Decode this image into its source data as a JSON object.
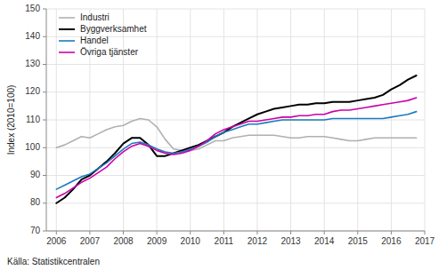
{
  "chart_data": {
    "type": "line",
    "ylabel": "Index (2010=100)",
    "source": "Källa: Statistikcentralen",
    "xlim": [
      2005.7,
      2017.0
    ],
    "xticks": [
      2006,
      2007,
      2008,
      2009,
      2010,
      2011,
      2012,
      2013,
      2014,
      2015,
      2016,
      2017
    ],
    "ylim": [
      70,
      150
    ],
    "yticks": [
      70,
      80,
      90,
      100,
      110,
      120,
      130,
      140,
      150
    ],
    "grid": true,
    "legend": "upper left",
    "x": [
      2006.0,
      2006.25,
      2006.5,
      2006.75,
      2007.0,
      2007.25,
      2007.5,
      2007.75,
      2008.0,
      2008.25,
      2008.5,
      2008.75,
      2009.0,
      2009.25,
      2009.5,
      2009.75,
      2010.0,
      2010.25,
      2010.5,
      2010.75,
      2011.0,
      2011.25,
      2011.5,
      2011.75,
      2012.0,
      2012.25,
      2012.5,
      2012.75,
      2013.0,
      2013.25,
      2013.5,
      2013.75,
      2014.0,
      2014.25,
      2014.5,
      2014.75,
      2015.0,
      2015.25,
      2015.5,
      2015.75,
      2016.0,
      2016.25,
      2016.5,
      2016.75
    ],
    "series": [
      {
        "name": "Industri",
        "color": "#b0b0b0",
        "values": [
          100.0,
          101.0,
          102.5,
          104.0,
          103.5,
          105.0,
          106.5,
          107.5,
          108.0,
          109.5,
          110.5,
          110.0,
          107.5,
          103.0,
          99.5,
          99.0,
          99.0,
          99.5,
          101.0,
          102.5,
          102.5,
          103.5,
          104.0,
          104.5,
          104.5,
          104.5,
          104.5,
          104.0,
          103.5,
          103.5,
          104.0,
          104.0,
          104.0,
          103.5,
          103.0,
          102.5,
          102.5,
          103.0,
          103.5,
          103.5,
          103.5,
          103.5,
          103.5,
          103.5
        ]
      },
      {
        "name": "Byggverksamhet",
        "color": "#000000",
        "values": [
          80.0,
          82.0,
          85.0,
          88.5,
          90.0,
          92.5,
          95.0,
          98.0,
          101.5,
          103.5,
          103.5,
          101.0,
          97.0,
          97.0,
          98.0,
          99.0,
          100.0,
          101.0,
          102.5,
          104.0,
          105.5,
          107.5,
          109.0,
          110.5,
          112.0,
          113.0,
          114.0,
          114.5,
          115.0,
          115.5,
          115.5,
          116.0,
          116.0,
          116.5,
          116.5,
          116.5,
          117.0,
          117.5,
          118.0,
          119.0,
          121.0,
          122.5,
          124.5,
          126.0
        ]
      },
      {
        "name": "Handel",
        "color": "#1a7abf",
        "values": [
          85.0,
          86.5,
          88.0,
          89.5,
          90.5,
          92.5,
          94.5,
          97.0,
          99.5,
          101.5,
          102.0,
          101.0,
          99.5,
          98.5,
          98.0,
          98.5,
          99.5,
          100.5,
          102.0,
          104.0,
          105.5,
          106.5,
          107.5,
          108.5,
          108.5,
          109.0,
          109.5,
          110.0,
          110.0,
          110.0,
          110.0,
          110.0,
          110.0,
          110.5,
          110.5,
          110.5,
          110.5,
          110.5,
          110.5,
          110.5,
          111.0,
          111.5,
          112.0,
          113.0
        ]
      },
      {
        "name": "Övriga tjänster",
        "color": "#cc00aa",
        "values": [
          82.0,
          83.5,
          85.5,
          87.5,
          89.0,
          91.0,
          93.0,
          96.0,
          98.5,
          100.5,
          101.5,
          100.5,
          99.0,
          98.0,
          97.5,
          98.0,
          99.0,
          100.5,
          102.5,
          105.0,
          106.5,
          107.5,
          108.5,
          109.5,
          109.5,
          110.0,
          110.5,
          111.0,
          111.0,
          111.5,
          111.5,
          112.0,
          112.0,
          113.0,
          113.5,
          113.5,
          114.0,
          114.5,
          115.0,
          115.5,
          116.0,
          116.5,
          117.0,
          118.0
        ]
      }
    ]
  }
}
